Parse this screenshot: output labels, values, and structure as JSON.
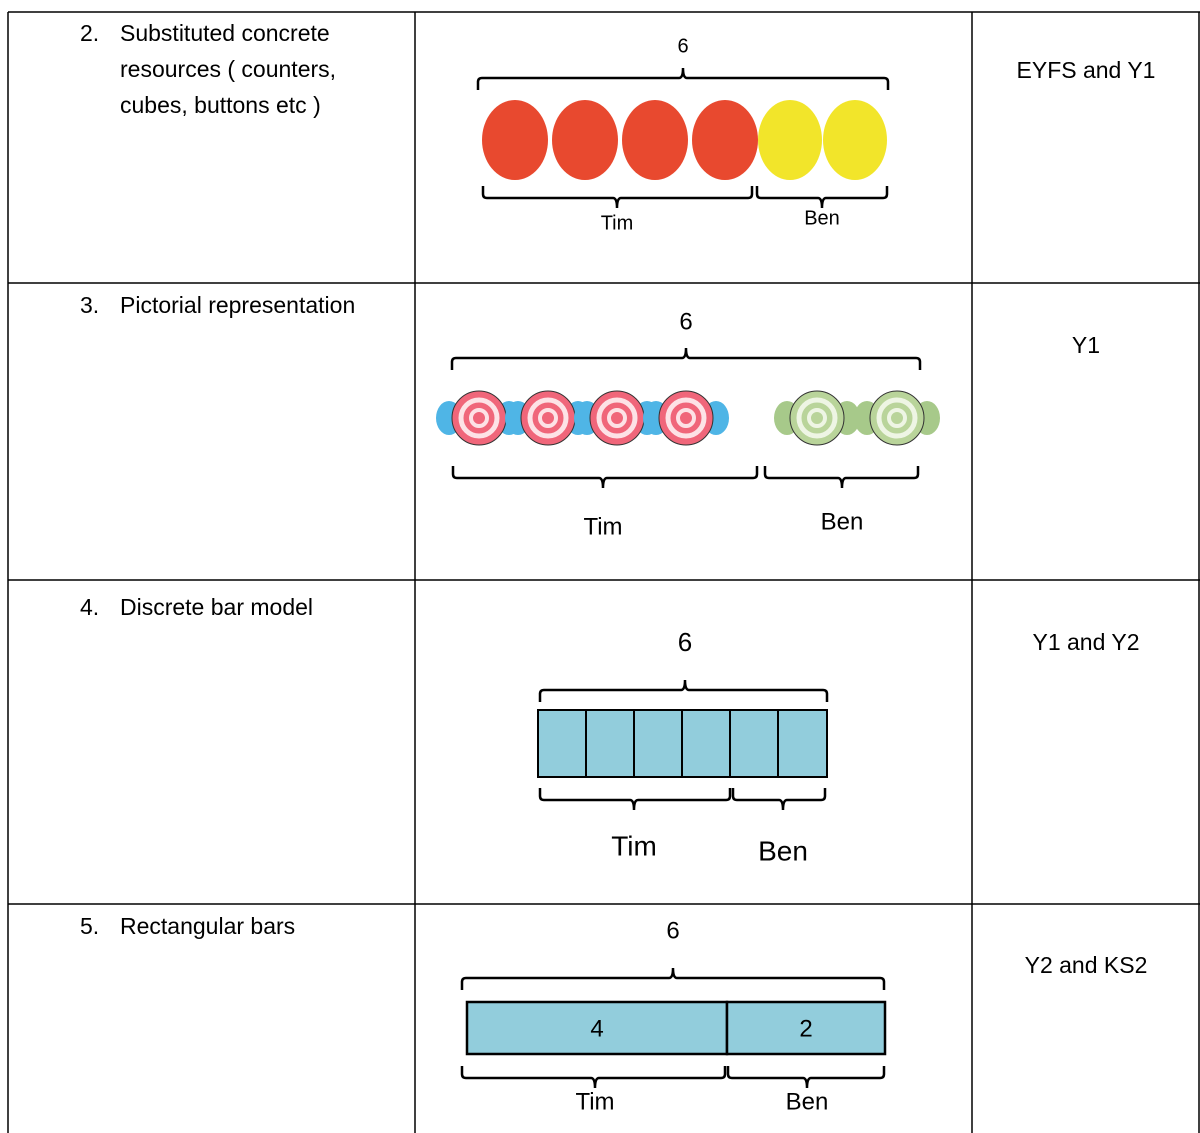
{
  "table": {
    "rows": [
      {
        "number": "2.",
        "description": "Substituted concrete resources ( counters, cubes, buttons etc )",
        "diagram": {
          "total": "6",
          "left_label": "Tim",
          "right_label": "Ben"
        },
        "stage": "EYFS and Y1"
      },
      {
        "number": "3.",
        "description": "Pictorial representation",
        "diagram": {
          "total": "6",
          "left_label": "Tim",
          "right_label": "Ben"
        },
        "stage": "Y1"
      },
      {
        "number": "4.",
        "description": "Discrete bar model",
        "diagram": {
          "total": "6",
          "left_label": "Tim",
          "right_label": "Ben"
        },
        "stage": "Y1 and Y2"
      },
      {
        "number": "5.",
        "description": "Rectangular bars",
        "diagram": {
          "total": "6",
          "left_value": "4",
          "right_value": "2",
          "left_label": "Tim",
          "right_label": "Ben"
        },
        "stage": "Y2 and KS2"
      }
    ]
  }
}
